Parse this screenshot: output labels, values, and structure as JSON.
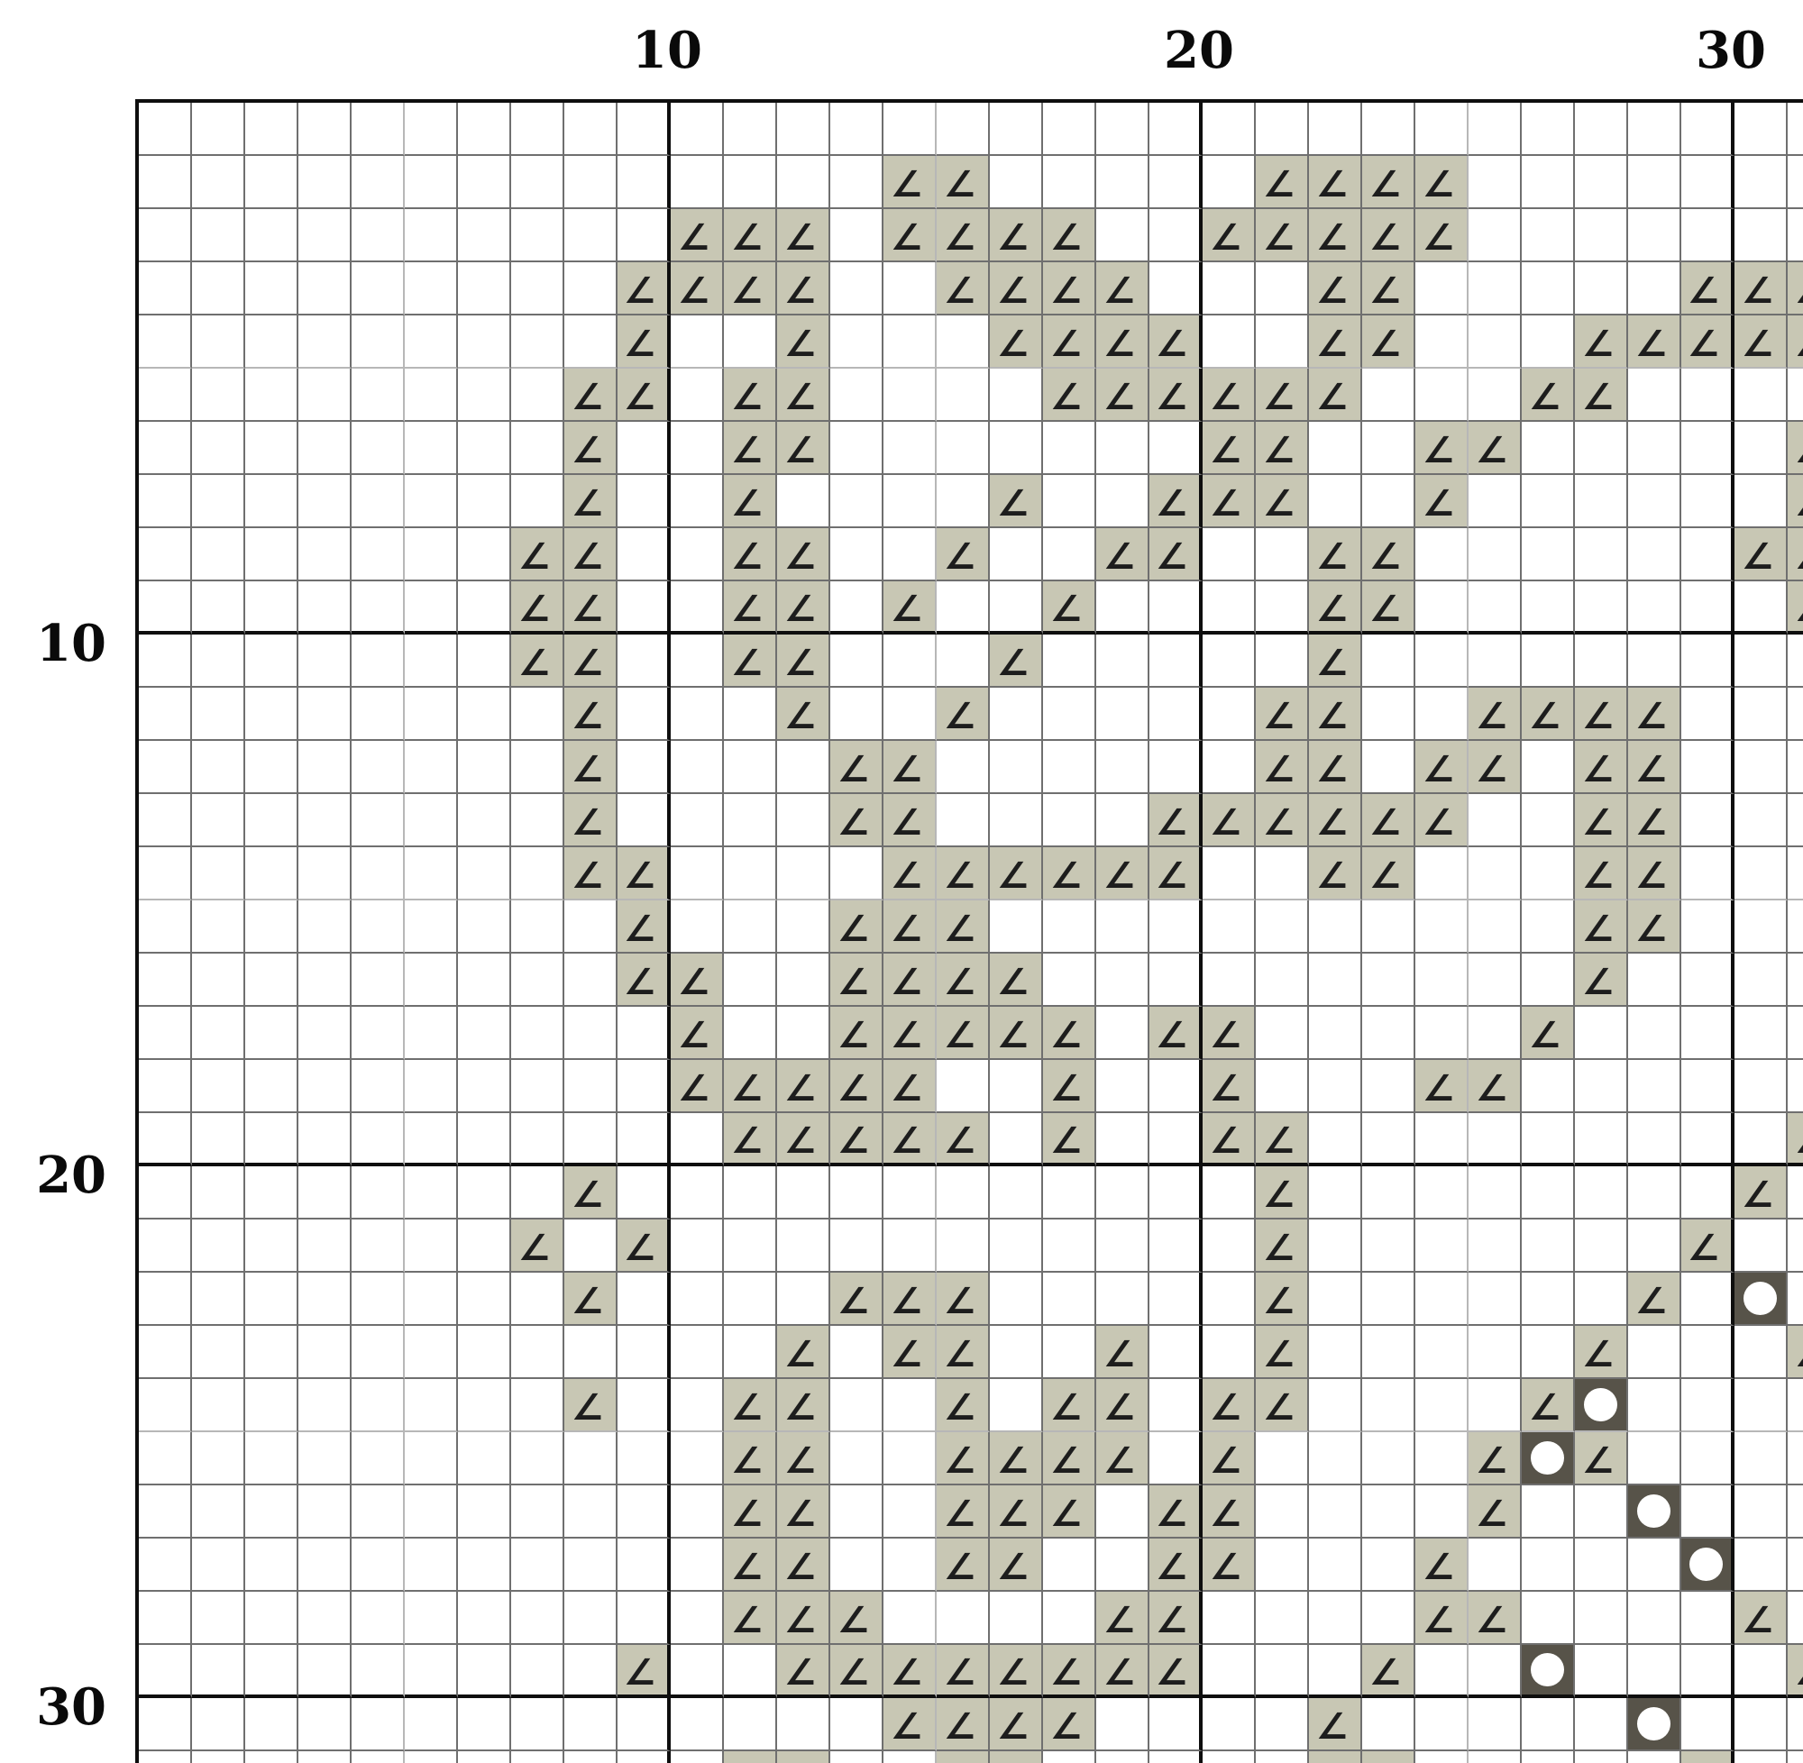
{
  "chart_title": "",
  "axis": {
    "top_labels": [
      {
        "value": "10",
        "col": 10
      },
      {
        "value": "20",
        "col": 20
      },
      {
        "value": "30",
        "col": 30
      }
    ],
    "left_labels": [
      {
        "value": "10",
        "row": 10
      },
      {
        "value": "20",
        "row": 20
      },
      {
        "value": "30",
        "row": 30
      }
    ]
  },
  "colors": {
    "background": "#ffffff",
    "angle_cell_bg": "#c8c7b4",
    "circle_cell_bg": "#575349",
    "circle_dot": "#ffffff",
    "symbol_color": "#1d1d1d",
    "grid_minor_line": "#6f6f6f",
    "grid_mid_line": "#b7b7b7",
    "grid_major_line": "#0e0e0e",
    "axis_text": "#0a0a0a"
  },
  "grid": {
    "columns": 32,
    "rows": 32,
    "visible_note": "right column and bottom row are cut off by the image edge",
    "symbols": {
      "a": "∠",
      "o": "circle",
      ".": "empty"
    },
    "pattern": [
      "................................",
      "..............aa.....aaaa.......",
      "..........aaa.aaaa..aaaaa.......",
      ".........aaaa..aaaa...aa.....aaa",
      ".........a..a...aaaa..aa...aaaaa",
      "........aa.aa....aaaaaa...aa....",
      "........a..aa.......aa..aa.....a",
      "........a..a....a..aaa..a......a",
      ".......aa..aa..a..aa..aa......aa",
      ".......aa..aa.a..a....aa.......a",
      ".......aa..aa...a.....a.........",
      "........a...a..a.....aa..aaaa...",
      "........a....aa......aa.aa.aa...",
      "........a....aa....aaaaaa..aa...",
      "........aa....aaaaaa..aa...aa...",
      ".........a...aaa...........aa...",
      ".........aa..aaaa..........a....",
      "..........a..aaaaa.aa.....a.....",
      "..........aaaaa..a..a...aa......",
      "...........aaaaa.a..aa.........a",
      "........a............a........a.",
      ".......a.a...........a.......a..",
      "........a....aaa.....a......a.o.",
      "............a.aa..a..a.....a...a",
      "........a..aa..a.aa.aa....ao....",
      "...........aa..aaaa.a....aoa....",
      "...........aa..aaa.aa....a..o...",
      "...........aa..aa..aa...a....o..",
      "...........aaa....aa....aa....a.",
      ".........a..aaaaaaaa...a..o....a",
      "..............aaaa....a.....o...",
      "...........aa..aa.....aa.....a.."
    ]
  }
}
